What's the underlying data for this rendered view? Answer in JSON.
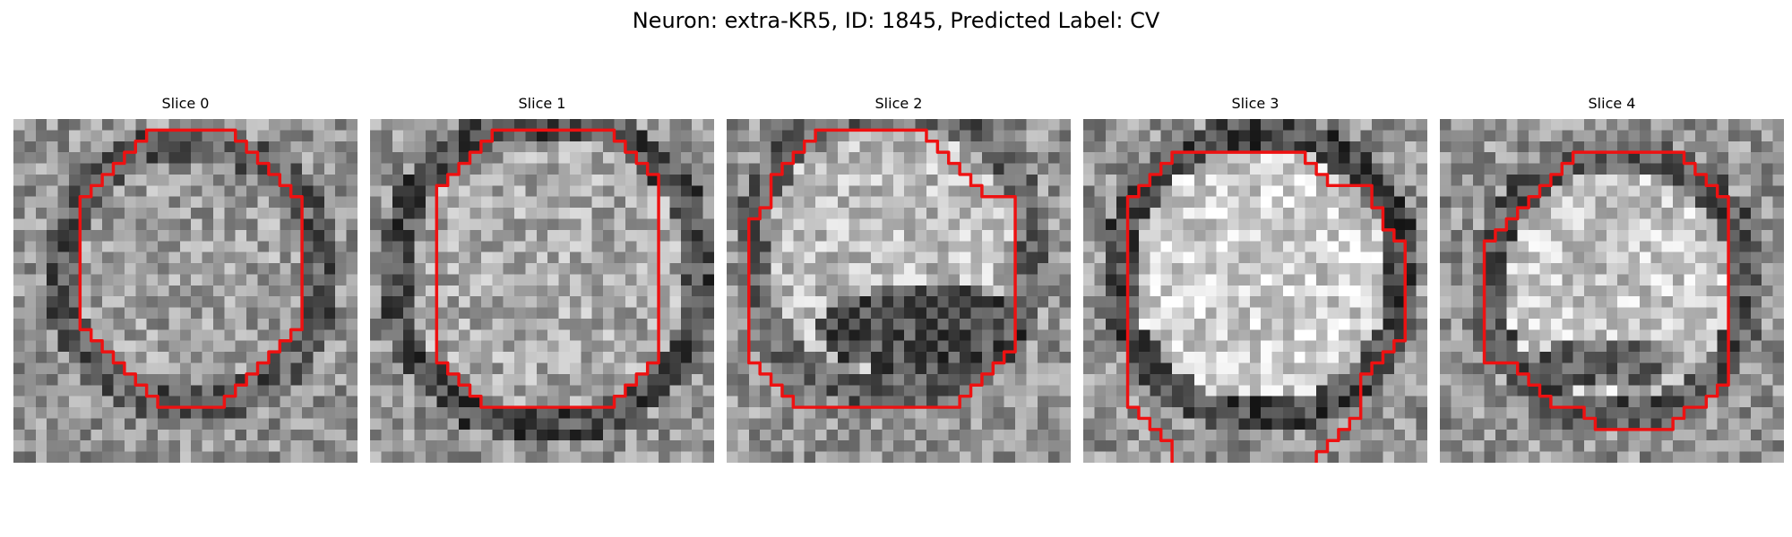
{
  "figure": {
    "title": "Neuron: extra-KR5, ID: 1845, Predicted Label: CV"
  },
  "panels": [
    {
      "title": "Slice 0"
    },
    {
      "title": "Slice 1"
    },
    {
      "title": "Slice 2"
    },
    {
      "title": "Slice 3"
    },
    {
      "title": "Slice 4"
    }
  ],
  "style": {
    "contour_color": "#ee1111",
    "colormap": "gray"
  }
}
